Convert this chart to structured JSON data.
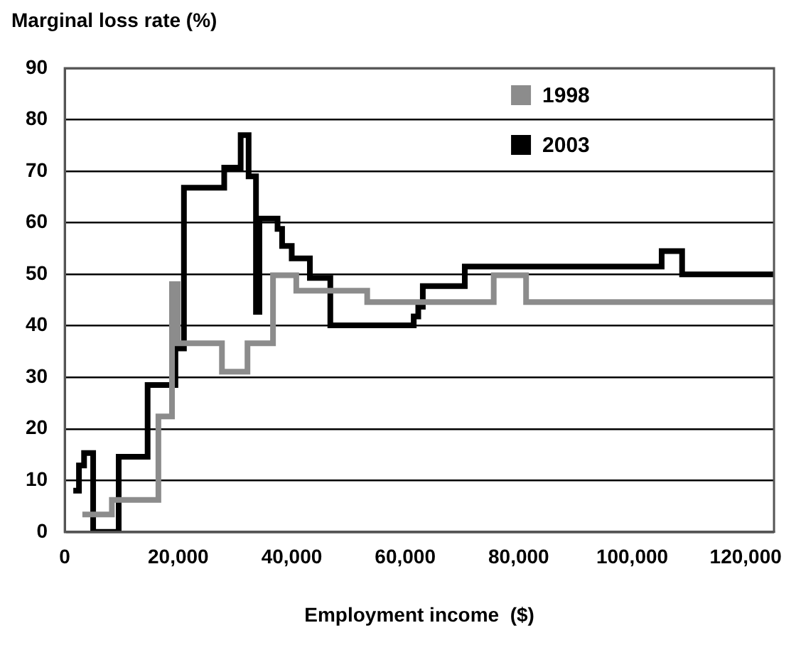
{
  "chart_data": {
    "type": "step",
    "ylabel": "Marginal loss rate (%)",
    "xlabel": "Employment income  ($)",
    "xlim": [
      0,
      125000
    ],
    "xticks": [
      0,
      {
        "value": 20000,
        "label": "20,000"
      },
      {
        "value": 40000,
        "label": "40,000"
      },
      {
        "value": 60000,
        "label": "60,000"
      },
      {
        "value": 80000,
        "label": "80,000"
      },
      {
        "value": 100000,
        "label": "100,000"
      },
      {
        "value": 120000,
        "label": "120,000"
      }
    ],
    "ylim": [
      0,
      90
    ],
    "yticks": [
      0,
      10,
      20,
      30,
      40,
      50,
      60,
      70,
      80,
      90
    ],
    "grid": "y",
    "legend": "top right",
    "series": [
      {
        "name": "1998",
        "color": "#8c8c8c",
        "x": [
          3100,
          8300,
          16500,
          18900,
          19900,
          27700,
          32200,
          36700,
          40800,
          53300,
          75600,
          81300,
          125000
        ],
        "values": [
          3.4,
          6.2,
          22.4,
          48.1,
          36.6,
          31.1,
          36.6,
          49.8,
          46.8,
          44.6,
          49.8,
          44.6,
          44.6
        ]
      },
      {
        "name": "2003",
        "color": "#000000",
        "x": [
          1500,
          2500,
          3400,
          5000,
          9500,
          14600,
          19500,
          21000,
          28100,
          31000,
          32400,
          33700,
          34300,
          37500,
          38300,
          40000,
          43200,
          46800,
          61500,
          62300,
          63100,
          70500,
          105200,
          108800,
          125000
        ],
        "values": [
          8,
          12.9,
          15.3,
          0,
          14.6,
          28.5,
          35.6,
          66.8,
          70.7,
          77,
          69,
          42.7,
          60.8,
          58.8,
          55.5,
          53.1,
          49.3,
          40.1,
          41.8,
          43.7,
          47.7,
          51.5,
          54.5,
          50,
          50
        ]
      }
    ]
  }
}
